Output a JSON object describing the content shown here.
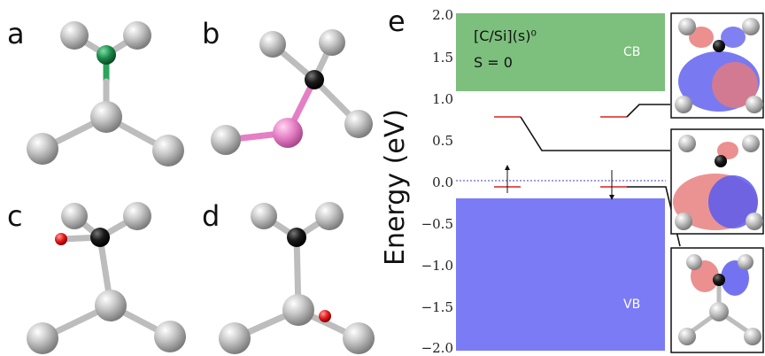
{
  "panels": {
    "a": "a",
    "b": "b",
    "c": "c",
    "d": "d",
    "e": "e"
  },
  "colors": {
    "si_atom": "#b9b9b9",
    "dopant_green": "#1c8a4a",
    "carbon_black": "#1b1b1b",
    "pink_atom": "#e57fc4",
    "oxygen_red": "#e31b1b",
    "cb_band": "#7dbf7d",
    "vb_band": "#7b7bf6",
    "defect_level": "#e05a5a",
    "fermi_line": "#3b3bd6",
    "orbital_red": "#e77b7b",
    "orbital_blue": "#5b5bf0"
  },
  "energy_plot": {
    "ylabel": "Energy (eV)",
    "ylim": [
      -2.0,
      2.0
    ],
    "ticks": [
      "2.0",
      "1.5",
      "1.0",
      "0.5",
      "0.0",
      "−0.5",
      "−1.0",
      "−1.5",
      "−2.0"
    ],
    "system_label": "[C/Si](s)⁰",
    "spin_label": "S = 0",
    "cb_label": "CB",
    "vb_label": "VB",
    "cb_range": [
      1.1,
      2.0
    ],
    "vb_range": [
      -2.0,
      -0.2
    ],
    "fermi_level": 0.0
  },
  "chart_data": {
    "type": "other",
    "ylabel": "Energy (eV)",
    "ylim": [
      -2.0,
      2.0
    ],
    "bands": [
      {
        "name": "CB",
        "from": 1.1,
        "to": 2.0
      },
      {
        "name": "VB",
        "from": -2.0,
        "to": -0.2
      }
    ],
    "levels": [
      {
        "spin": "up",
        "energy": 0.75,
        "occupied": false
      },
      {
        "spin": "up",
        "energy": -0.05,
        "occupied": true
      },
      {
        "spin": "down",
        "energy": 0.75,
        "occupied": false
      },
      {
        "spin": "down",
        "energy": -0.05,
        "occupied": true
      }
    ]
  }
}
